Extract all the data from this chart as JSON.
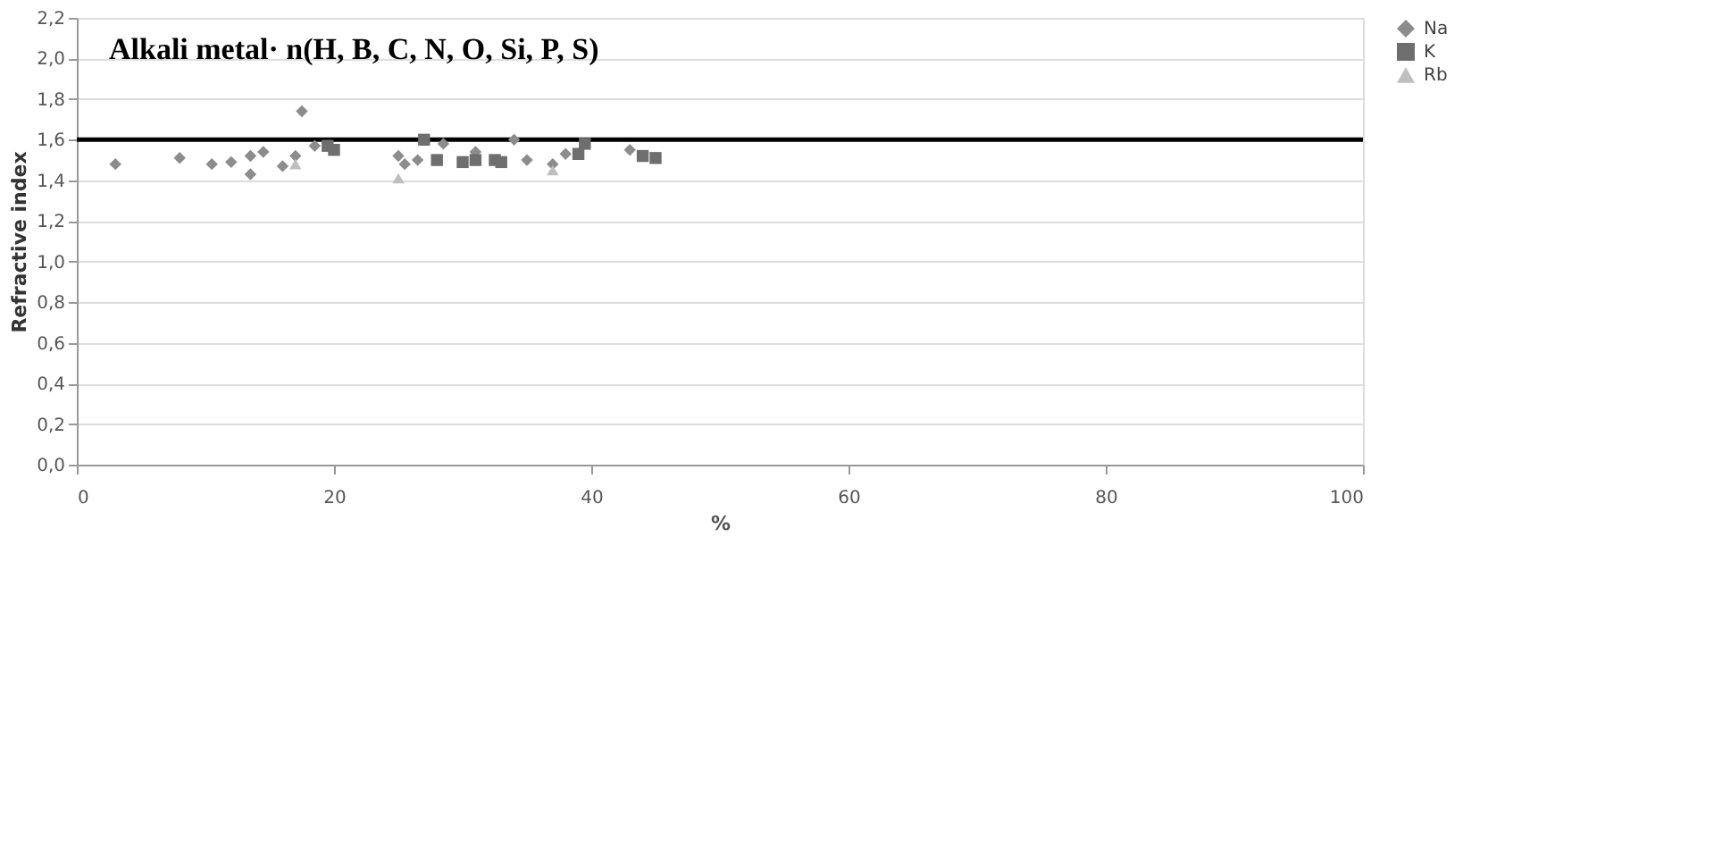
{
  "chart_data": {
    "type": "scatter",
    "title": "Alkali metal· n(H, B, C, N, O, Si, P, S)",
    "xlabel": "%",
    "ylabel": "Refractive index",
    "xlim": [
      0,
      100
    ],
    "xticks": [
      0,
      20,
      40,
      60,
      80,
      100
    ],
    "ylim": [
      0,
      2.2
    ],
    "yticks": [
      {
        "value": 0,
        "label": "0,0"
      },
      {
        "value": 0.2,
        "label": "0,2"
      },
      {
        "value": 0.4,
        "label": "0,4"
      },
      {
        "value": 0.6,
        "label": "0,6"
      },
      {
        "value": 0.8,
        "label": "0,8"
      },
      {
        "value": 1.0,
        "label": "1,0"
      },
      {
        "value": 1.2,
        "label": "1,2"
      },
      {
        "value": 1.4,
        "label": "1,4"
      },
      {
        "value": 1.6,
        "label": "1,6"
      },
      {
        "value": 1.8,
        "label": "1,8"
      },
      {
        "value": 2.0,
        "label": "2,0"
      },
      {
        "value": 2.2,
        "label": "2,2"
      }
    ],
    "grid": "y",
    "legend": "top right",
    "ref_lines": [
      {
        "axis": "y",
        "value": 1.6,
        "color": "#000000"
      }
    ],
    "series": [
      {
        "name": "Na",
        "color": "#8c8c8c",
        "marker": "diamond",
        "x": [
          3,
          8,
          10.5,
          12,
          13.5,
          14.5,
          13.5,
          16,
          17,
          17.5,
          18.5,
          25,
          25.5,
          26.5,
          28.5,
          31,
          34,
          35,
          37,
          38,
          43
        ],
        "values": [
          1.48,
          1.51,
          1.48,
          1.49,
          1.52,
          1.54,
          1.43,
          1.47,
          1.52,
          1.74,
          1.57,
          1.52,
          1.48,
          1.5,
          1.58,
          1.54,
          1.6,
          1.5,
          1.48,
          1.53,
          1.55
        ]
      },
      {
        "name": "K",
        "color": "#6e6e6e",
        "marker": "square",
        "x": [
          19.5,
          20,
          27,
          28,
          30,
          31,
          32.5,
          33,
          39,
          39.5,
          44,
          45
        ],
        "values": [
          1.57,
          1.55,
          1.6,
          1.5,
          1.49,
          1.5,
          1.5,
          1.49,
          1.53,
          1.58,
          1.52,
          1.51
        ]
      },
      {
        "name": "Rb",
        "color": "#bfbfbf",
        "marker": "triangle",
        "x": [
          17,
          25,
          37
        ],
        "values": [
          1.48,
          1.41,
          1.45
        ]
      }
    ]
  }
}
